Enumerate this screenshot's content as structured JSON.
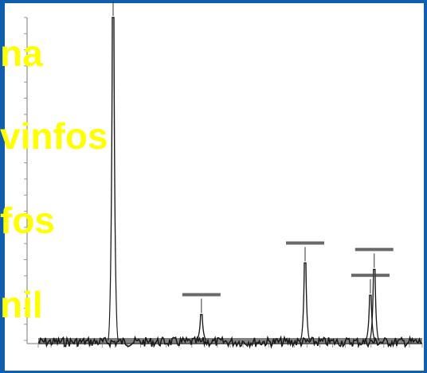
{
  "theme": {
    "frame_color": "#0f5fae",
    "plot_background": "#ffffff",
    "trace_color": "#1a1a1a",
    "overlay_text_color": "#ffff00"
  },
  "overlay_labels": [
    "na",
    "vinfos",
    "fos",
    "nil"
  ],
  "chart_data": {
    "type": "line",
    "title": "",
    "xlabel": "",
    "ylabel": "",
    "xlim": [
      0,
      10
    ],
    "ylim": [
      0,
      100
    ],
    "grid": false,
    "legend": "none",
    "series": [
      {
        "peaks": [
          {
            "x": 1.95,
            "height": 100,
            "width": 0.09
          },
          {
            "x": 4.25,
            "height": 8,
            "width": 0.08
          },
          {
            "x": 6.95,
            "height": 24,
            "width": 0.07
          },
          {
            "x": 8.65,
            "height": 14,
            "width": 0.07
          },
          {
            "x": 8.75,
            "height": 22,
            "width": 0.07
          }
        ]
      }
    ],
    "peak_labels": [
      {
        "x": 1.95,
        "y": 100,
        "text": ""
      },
      {
        "x": 4.25,
        "y": 8,
        "text": ""
      },
      {
        "x": 6.95,
        "y": 24,
        "text": ""
      },
      {
        "x": 8.65,
        "y": 14,
        "text": ""
      },
      {
        "x": 8.75,
        "y": 22,
        "text": ""
      }
    ]
  }
}
